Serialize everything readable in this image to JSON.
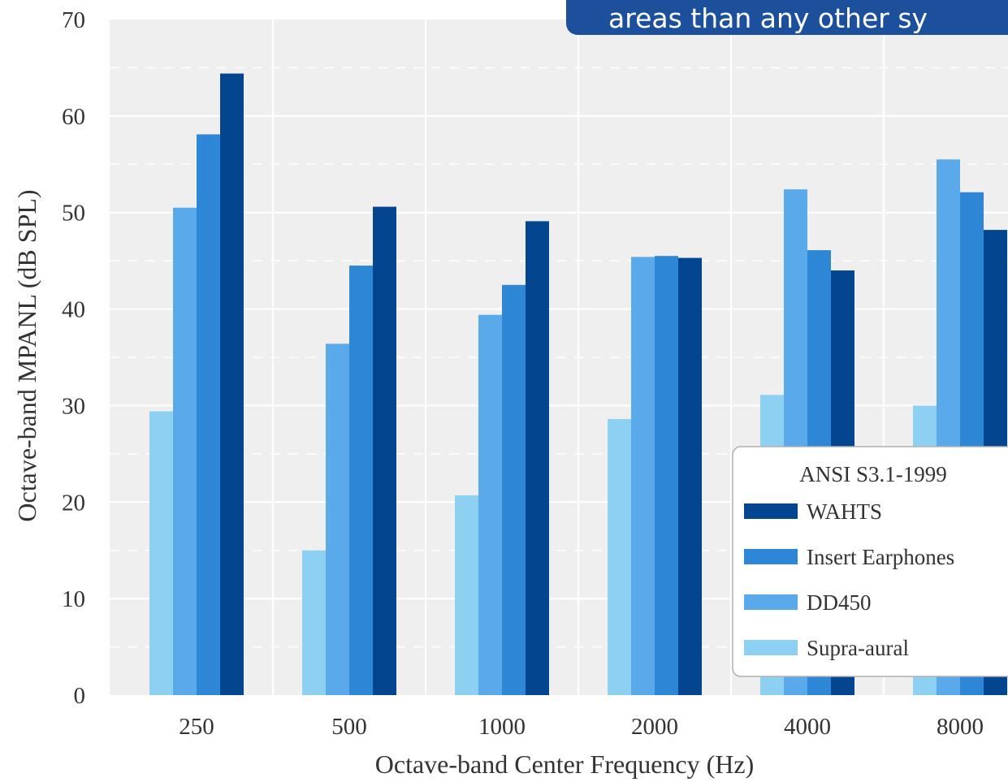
{
  "banner": {
    "text": "areas than any other sy"
  },
  "colors": {
    "plot_background": "#efefef",
    "grid": "#ffffff",
    "series": [
      "#8ed0f2",
      "#5aa9ea",
      "#2d86d6",
      "#03468f"
    ]
  },
  "chart_data": {
    "type": "bar",
    "xlabel": "Octave-band Center Frequency (Hz)",
    "ylabel": "Octave-band MPANL (dB SPL)",
    "ylim": [
      0,
      70
    ],
    "yticks": [
      0,
      10,
      20,
      30,
      40,
      50,
      60,
      70
    ],
    "grid": true,
    "categories": [
      "250",
      "500",
      "1000",
      "2000",
      "4000",
      "8000"
    ],
    "series": [
      {
        "name": "Supra-aural",
        "color": "#8ed0f2",
        "values": [
          29.4,
          15.0,
          20.7,
          28.6,
          31.1,
          30.0
        ]
      },
      {
        "name": "DD450",
        "color": "#5aa9ea",
        "values": [
          50.5,
          36.4,
          39.4,
          45.4,
          52.4,
          55.5
        ]
      },
      {
        "name": "Insert Earphones",
        "color": "#2d86d6",
        "values": [
          58.1,
          44.5,
          42.5,
          45.5,
          46.1,
          52.1
        ]
      },
      {
        "name": "WAHTS",
        "color": "#03468f",
        "values": [
          64.4,
          50.6,
          49.1,
          45.3,
          44.0,
          48.2
        ]
      }
    ],
    "legend": {
      "title": "ANSI S3.1-1999",
      "position": "lower-right",
      "order": [
        "WAHTS",
        "Insert Earphones",
        "DD450",
        "Supra-aural"
      ]
    }
  }
}
